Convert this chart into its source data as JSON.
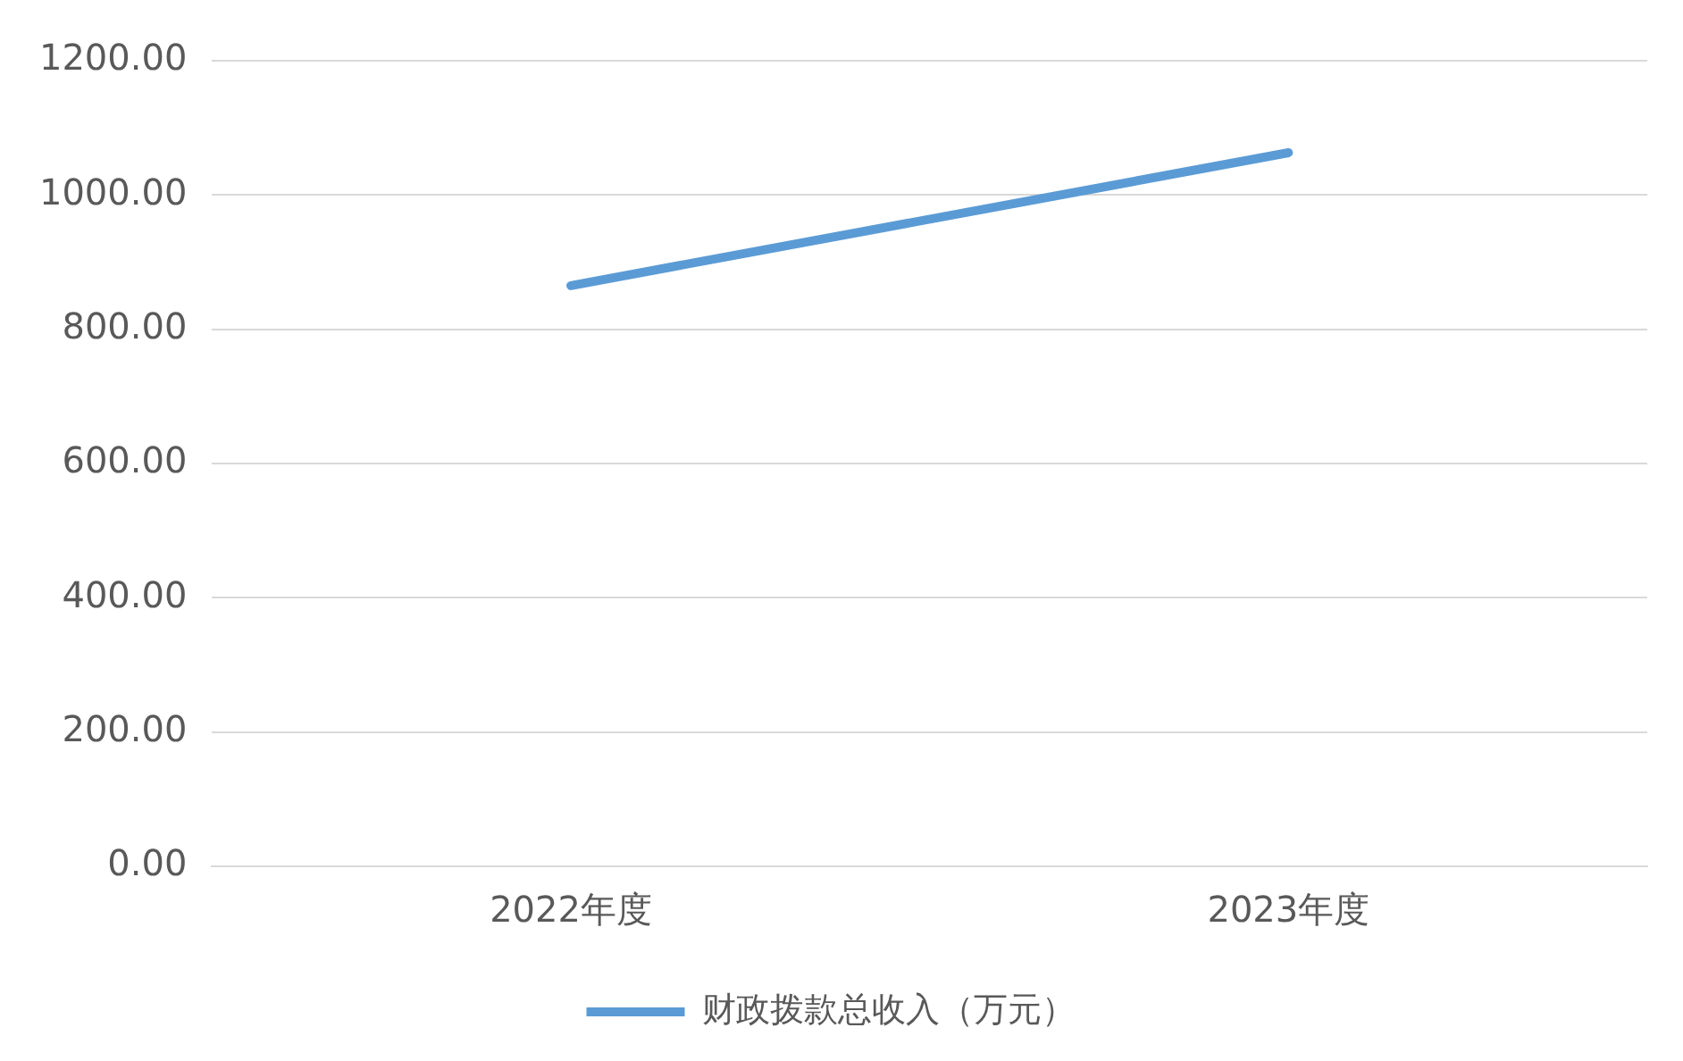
{
  "chart_data": {
    "type": "line",
    "categories": [
      "2022年度",
      "2023年度"
    ],
    "series": [
      {
        "name": "财政拨款总收入（万元）",
        "color": "#5b9bd5",
        "values": [
          865,
          1063
        ]
      }
    ],
    "ylim": [
      0,
      1200
    ],
    "yticks": [
      {
        "value": 0,
        "label": "0.00"
      },
      {
        "value": 200,
        "label": "200.00"
      },
      {
        "value": 400,
        "label": "400.00"
      },
      {
        "value": 600,
        "label": "600.00"
      },
      {
        "value": 800,
        "label": "800.00"
      },
      {
        "value": 1000,
        "label": "1000.00"
      },
      {
        "value": 1200,
        "label": "1200.00"
      }
    ],
    "grid": "y",
    "legend": "bottom",
    "marker": "none",
    "line_style": "solid"
  }
}
